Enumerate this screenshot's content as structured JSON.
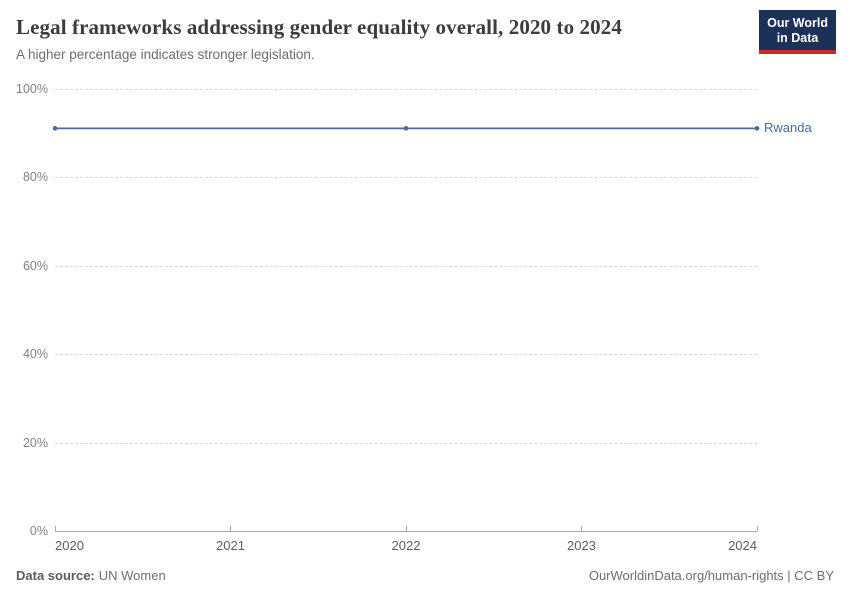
{
  "header": {
    "title": "Legal frameworks addressing gender equality overall, 2020 to 2024",
    "subtitle": "A higher percentage indicates stronger legislation."
  },
  "logo": {
    "line1": "Our World",
    "line2": "in Data",
    "bg_color": "#1c3158",
    "accent_color": "#cc2a27"
  },
  "chart_data": {
    "type": "line",
    "title": "Legal frameworks addressing gender equality overall, 2020 to 2024",
    "subtitle": "A higher percentage indicates stronger legislation.",
    "x": [
      2020,
      2022,
      2024
    ],
    "series": [
      {
        "name": "Rwanda",
        "values": [
          91.1,
          91.1,
          91.1
        ],
        "color": "#4c6a9c"
      }
    ],
    "xlabel": "",
    "ylabel": "",
    "xlim": [
      2020,
      2024
    ],
    "ylim": [
      0,
      100
    ],
    "x_ticks": [
      2020,
      2021,
      2022,
      2023,
      2024
    ],
    "y_ticks": [
      "0%",
      "20%",
      "40%",
      "60%",
      "80%",
      "100%"
    ],
    "y_tick_values": [
      0,
      20,
      40,
      60,
      80,
      100
    ],
    "grid": "horizontal-dashed",
    "legend_position": "end-of-line-label"
  },
  "footer": {
    "source_label": "Data source:",
    "source_value": "UN Women",
    "attribution": "OurWorldinData.org/human-rights | CC BY"
  },
  "colors": {
    "line": "#4c6a9c",
    "entity_label": "#4c6a9c",
    "grid": "#d9d9d9",
    "axis": "#a8a8a8",
    "y_tick_label": "#828282",
    "x_tick_label": "#5f5f5f",
    "title": "#3c3c3c",
    "subtitle": "#6e6e6e"
  }
}
